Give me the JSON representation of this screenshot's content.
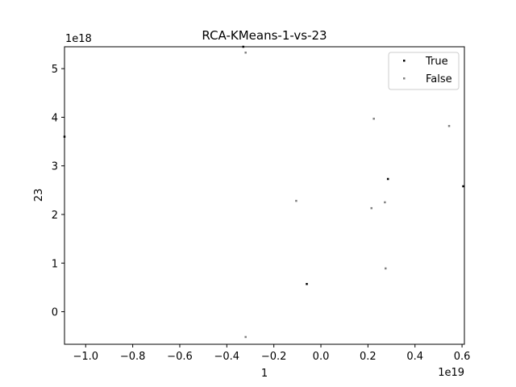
{
  "chart_data": {
    "type": "scatter",
    "title": "RCA-KMeans-1-vs-23",
    "xlabel": "1",
    "ylabel": "23",
    "x_offset_text": "1e19",
    "y_offset_text": "1e18",
    "xlim": [
      -1.09e+19,
      6.1e+18
    ],
    "ylim": [
      -6.7e+17,
      5.45e+18
    ],
    "x_ticks": [
      -1e+19,
      -8e+18,
      -6e+18,
      -4e+18,
      -2e+18,
      0,
      2e+18,
      4e+18,
      6e+18
    ],
    "x_tick_labels": [
      "−1.0",
      "−0.8",
      "−0.6",
      "−0.4",
      "−0.2",
      "0.0",
      "0.2",
      "0.4",
      "0.6"
    ],
    "y_ticks": [
      0,
      1e+18,
      2e+18,
      3e+18,
      4e+18,
      5e+18
    ],
    "y_tick_labels": [
      "0",
      "1",
      "2",
      "3",
      "4",
      "5"
    ],
    "grid": false,
    "legend_position": "top-right",
    "series": [
      {
        "name": "True",
        "color": "#000000",
        "points": [
          {
            "x": -3.3e+18,
            "y": 5.45e+18
          },
          {
            "x": -1.09e+19,
            "y": 3.6e+18
          },
          {
            "x": 2.85e+18,
            "y": 2.73e+18
          },
          {
            "x": 6.05e+18,
            "y": 2.58e+18
          },
          {
            "x": -6e+17,
            "y": 5.7e+17
          }
        ]
      },
      {
        "name": "False",
        "color": "#808080",
        "points": [
          {
            "x": -3.2e+18,
            "y": 5.33e+18
          },
          {
            "x": 2.25e+18,
            "y": 3.97e+18
          },
          {
            "x": 5.45e+18,
            "y": 3.82e+18
          },
          {
            "x": -1.05e+18,
            "y": 2.28e+18
          },
          {
            "x": 2.15e+18,
            "y": 2.13e+18
          },
          {
            "x": 2.72e+18,
            "y": 2.25e+18
          },
          {
            "x": 2.75e+18,
            "y": 8.9e+17
          },
          {
            "x": -3.2e+18,
            "y": -5.2e+17
          }
        ]
      }
    ]
  }
}
